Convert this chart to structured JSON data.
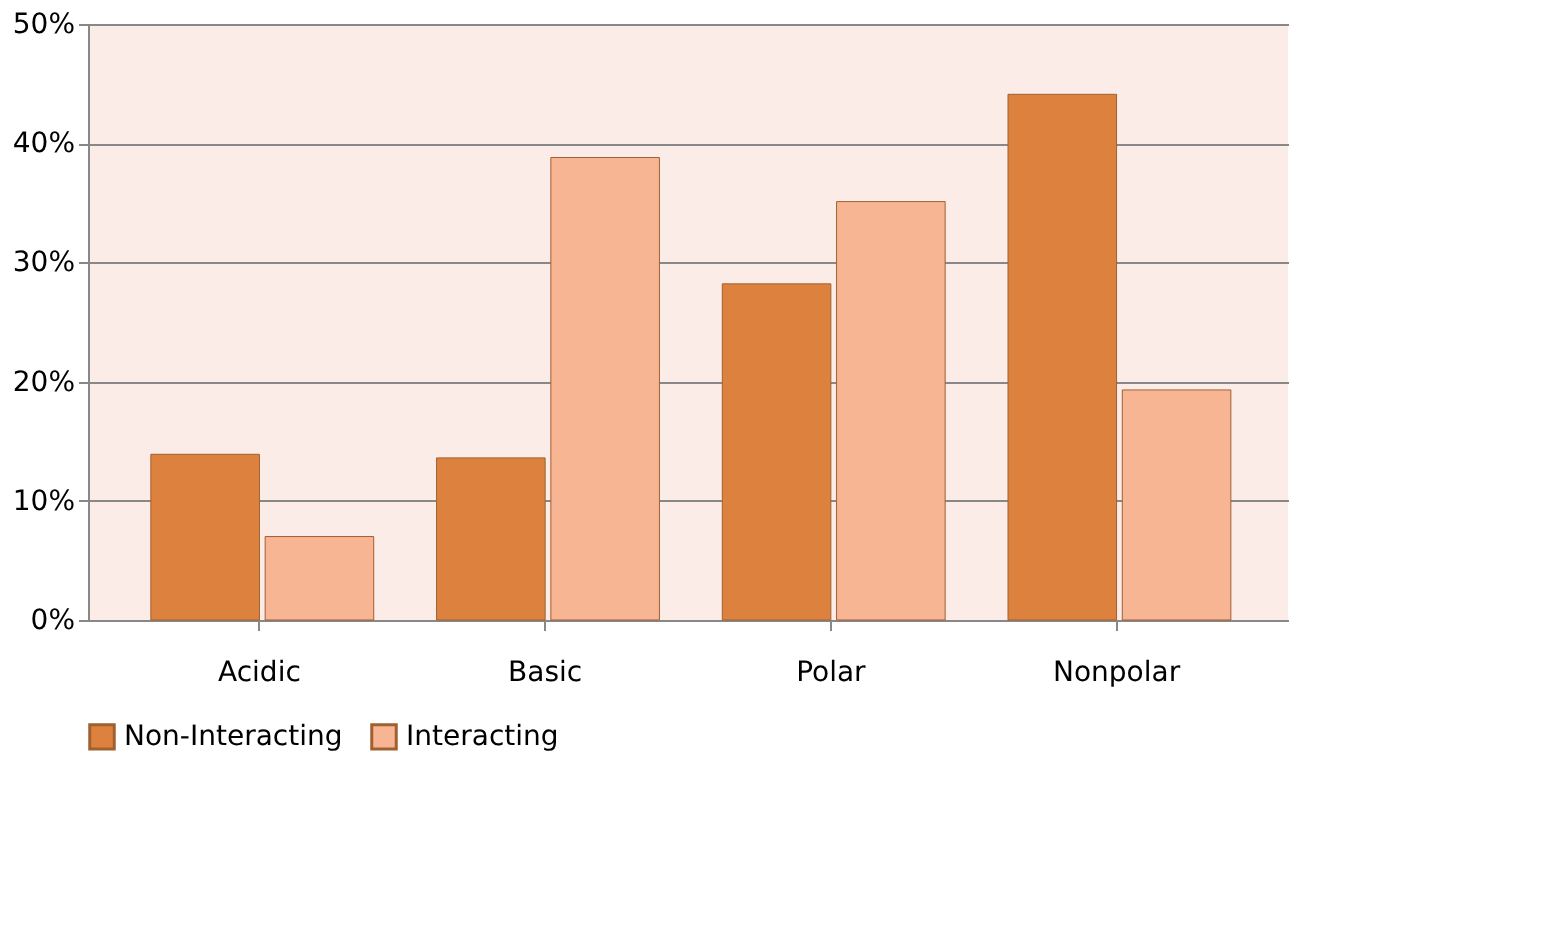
{
  "chart_data": {
    "type": "bar",
    "categories": [
      "Acidic",
      "Basic",
      "Polar",
      "Nonpolar"
    ],
    "series": [
      {
        "name": "Non-Interacting",
        "color": "#dc823e",
        "values": [
          13.9,
          13.6,
          28.2,
          44.1
        ]
      },
      {
        "name": "Interacting",
        "color": "#f8b593",
        "values": [
          7.0,
          38.8,
          35.1,
          19.3
        ]
      }
    ],
    "ylim": [
      0,
      50
    ],
    "yticks": [
      {
        "value": 0,
        "label": "0%"
      },
      {
        "value": 10,
        "label": "10%"
      },
      {
        "value": 20,
        "label": "20%"
      },
      {
        "value": 30,
        "label": "30%"
      },
      {
        "value": 40,
        "label": "40%"
      },
      {
        "value": 50,
        "label": "50%"
      }
    ],
    "grid": "y",
    "legend": "bottom"
  }
}
